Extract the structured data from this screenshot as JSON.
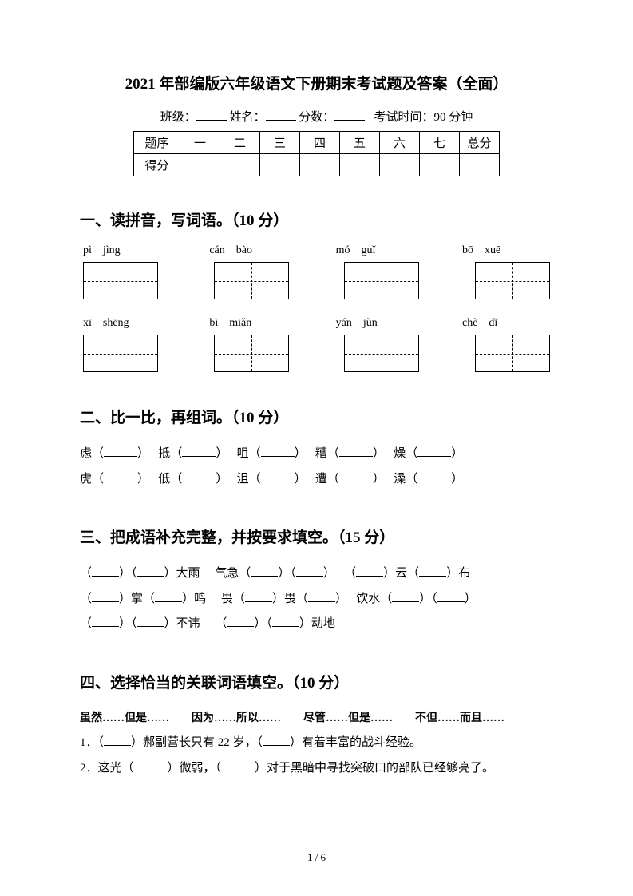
{
  "title": "2021 年部编版六年级语文下册期末考试题及答案（全面）",
  "info": {
    "class_label": "班级：",
    "name_label": "姓名：",
    "score_label": "分数：",
    "time_label": "考试时间：90 分钟"
  },
  "score_table": {
    "row1": [
      "题序",
      "一",
      "二",
      "三",
      "四",
      "五",
      "六",
      "七",
      "总分"
    ],
    "row2_label": "得分"
  },
  "section1": {
    "header": "一、读拼音，写词语。（10 分）",
    "row1": [
      {
        "p1": "pì",
        "p2": "jìng"
      },
      {
        "p1": "cán",
        "p2": "bào"
      },
      {
        "p1": "mó",
        "p2": "guǐ"
      },
      {
        "p1": "bō",
        "p2": "xuē"
      }
    ],
    "row2": [
      {
        "p1": "xī",
        "p2": "shēng"
      },
      {
        "p1": "bì",
        "p2": "miǎn"
      },
      {
        "p1": "yán",
        "p2": "jùn"
      },
      {
        "p1": "chè",
        "p2": "dǐ"
      }
    ]
  },
  "section2": {
    "header": "二、比一比，再组词。（10 分）",
    "pairs": [
      [
        "虑",
        "虎"
      ],
      [
        "抵",
        "低"
      ],
      [
        "咀",
        "沮"
      ],
      [
        "糟",
        "遭"
      ],
      [
        "燥",
        "澡"
      ]
    ]
  },
  "section3": {
    "header": "三、把成语补充完整，并按要求填空。（15 分）",
    "line1_a": "大雨",
    "line1_b": "气急",
    "line1_c": "云",
    "line1_d": "布",
    "line2_a": "掌",
    "line2_b": "鸣",
    "line2_c": "畏",
    "line2_d": "畏",
    "line2_e": "饮水",
    "line3_a": "不讳",
    "line3_b": "动地"
  },
  "section4": {
    "header": "四、选择恰当的关联词语填空。（10 分）",
    "options": "虽然……但是……　　因为……所以……　　尽管……但是……　　不但……而且……",
    "q1_num": "1．",
    "q1_a": "（",
    "q1_b": "）郝副营长只有 22 岁，（",
    "q1_c": "）有着丰富的战斗经验。",
    "q2_num": "2．",
    "q2_a": "这光（",
    "q2_b": "）微弱，（",
    "q2_c": "）对于黑暗中寻找突破口的部队已经够亮了。"
  },
  "footer": "1 / 6"
}
